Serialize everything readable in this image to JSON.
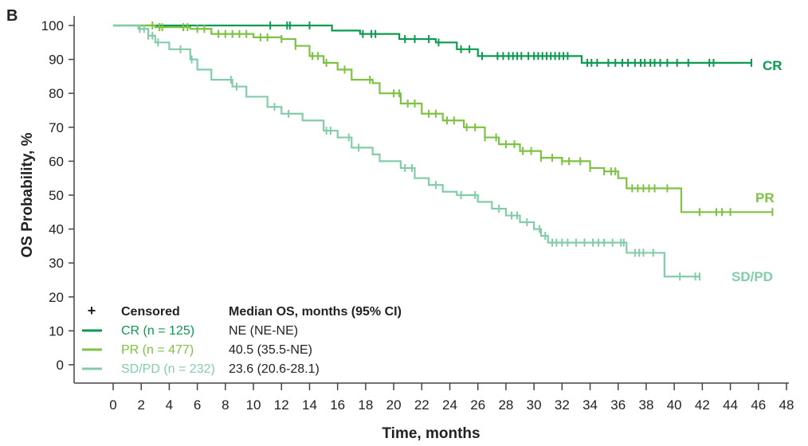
{
  "panel_label": "B",
  "chart_data": {
    "type": "line",
    "subtype": "kaplan-meier",
    "xlabel": "Time, months",
    "ylabel": "OS Probability, %",
    "xlim": [
      0,
      48
    ],
    "ylim": [
      0,
      100
    ],
    "xticks": [
      0,
      2,
      4,
      6,
      8,
      10,
      12,
      14,
      16,
      18,
      20,
      22,
      24,
      26,
      28,
      30,
      32,
      34,
      36,
      38,
      40,
      42,
      44,
      46,
      48
    ],
    "yticks": [
      0,
      10,
      20,
      30,
      40,
      50,
      60,
      70,
      80,
      90,
      100
    ],
    "grid": false,
    "legend": {
      "placement": "bottom-left",
      "censored_symbol": "+",
      "censored_label": "Censored",
      "median_header": "Median OS, months (95% CI)"
    },
    "series": [
      {
        "name": "CR",
        "legend_label": "CR (n = 125)",
        "median": "NE (NE-NE)",
        "color": "#0c9a50",
        "steps": [
          [
            0,
            100
          ],
          [
            15.6,
            98.5
          ],
          [
            17.6,
            97.5
          ],
          [
            20.4,
            96
          ],
          [
            23,
            95
          ],
          [
            24.5,
            93
          ],
          [
            26,
            91
          ],
          [
            33.4,
            89
          ],
          [
            45.5,
            89
          ]
        ],
        "censored": [
          11.2,
          12.4,
          12.6,
          14,
          17.8,
          18.4,
          18.7,
          20.8,
          21.5,
          22.5,
          23.2,
          24.8,
          25.4,
          26.3,
          27.4,
          27.8,
          28.2,
          28.5,
          28.8,
          29.1,
          29.6,
          30,
          30.3,
          30.6,
          30.9,
          31.2,
          31.5,
          31.8,
          32.1,
          32.4,
          33.8,
          34.1,
          34.5,
          35.3,
          35.8,
          36.3,
          36.7,
          37.2,
          37.6,
          37.9,
          38.3,
          38.6,
          39,
          39.5,
          40.2,
          41,
          42.5,
          42.8,
          45.5
        ]
      },
      {
        "name": "PR",
        "legend_label": "PR (n = 477)",
        "median": "40.5 (35.5-NE)",
        "color": "#7dc242",
        "steps": [
          [
            0,
            100
          ],
          [
            3,
            99.5
          ],
          [
            5.5,
            99
          ],
          [
            7,
            97.5
          ],
          [
            10,
            96.5
          ],
          [
            12,
            96
          ],
          [
            13,
            94
          ],
          [
            14,
            91
          ],
          [
            15,
            89
          ],
          [
            16,
            87
          ],
          [
            17,
            84
          ],
          [
            18.5,
            83
          ],
          [
            19,
            80
          ],
          [
            20.5,
            77
          ],
          [
            22,
            74
          ],
          [
            23.5,
            72
          ],
          [
            25,
            70
          ],
          [
            26.5,
            67
          ],
          [
            27.5,
            65
          ],
          [
            29,
            63
          ],
          [
            30.5,
            61
          ],
          [
            32,
            60
          ],
          [
            34,
            58
          ],
          [
            35,
            57
          ],
          [
            36,
            55
          ],
          [
            36.6,
            52
          ],
          [
            40.5,
            45
          ],
          [
            47,
            45
          ]
        ],
        "censored": [
          2.8,
          3.3,
          3.5,
          5,
          5.3,
          6,
          6.5,
          7.5,
          8,
          8.5,
          9,
          9.5,
          10.5,
          11,
          12,
          13,
          14.2,
          14.6,
          15.2,
          16.5,
          18.3,
          20,
          20.4,
          21,
          21.5,
          22.5,
          23,
          23.8,
          24.3,
          25.2,
          25.8,
          26.5,
          27.3,
          28,
          28.6,
          29.2,
          29.8,
          30.5,
          31.3,
          32,
          32.5,
          33.3,
          34,
          35,
          35.5,
          35.8,
          37,
          37.4,
          37.8,
          38.2,
          38.6,
          39.5,
          41.8,
          43,
          43.4,
          44,
          47
        ]
      },
      {
        "name": "SD/PD",
        "legend_label": "SD/PD (n = 232)",
        "median": "23.6 (20.6-28.1)",
        "color": "#82cda8",
        "steps": [
          [
            0,
            100
          ],
          [
            1.8,
            99
          ],
          [
            2.5,
            97
          ],
          [
            3,
            95
          ],
          [
            4,
            93
          ],
          [
            5.5,
            90
          ],
          [
            6,
            87
          ],
          [
            7,
            84
          ],
          [
            8.5,
            82
          ],
          [
            9.5,
            79
          ],
          [
            11,
            76
          ],
          [
            12,
            74
          ],
          [
            13.5,
            72
          ],
          [
            15,
            69
          ],
          [
            16,
            67
          ],
          [
            17,
            64
          ],
          [
            18.5,
            62
          ],
          [
            19,
            60
          ],
          [
            20.5,
            58
          ],
          [
            21.5,
            55
          ],
          [
            22.5,
            53
          ],
          [
            23.5,
            51
          ],
          [
            24.5,
            50
          ],
          [
            26,
            48
          ],
          [
            27,
            46
          ],
          [
            28,
            44
          ],
          [
            29,
            42
          ],
          [
            30,
            40
          ],
          [
            30.5,
            38
          ],
          [
            31,
            36
          ],
          [
            36.6,
            33
          ],
          [
            39.3,
            26
          ],
          [
            41.8,
            26
          ]
        ],
        "censored": [
          1.9,
          2.2,
          2.5,
          2.8,
          3.2,
          4.8,
          5.6,
          8.4,
          8.8,
          11.5,
          12.5,
          15.2,
          15.5,
          16.8,
          17.5,
          20.8,
          21.3,
          23,
          24.8,
          25.8,
          27.5,
          28.4,
          28.8,
          29.5,
          30.4,
          30.8,
          31.3,
          31.6,
          32,
          32.4,
          33,
          33.6,
          34.2,
          34.6,
          35,
          35.6,
          36.2,
          36.4,
          37.2,
          37.5,
          37.8,
          38.5,
          40.4,
          41.5,
          41.8
        ]
      }
    ]
  }
}
